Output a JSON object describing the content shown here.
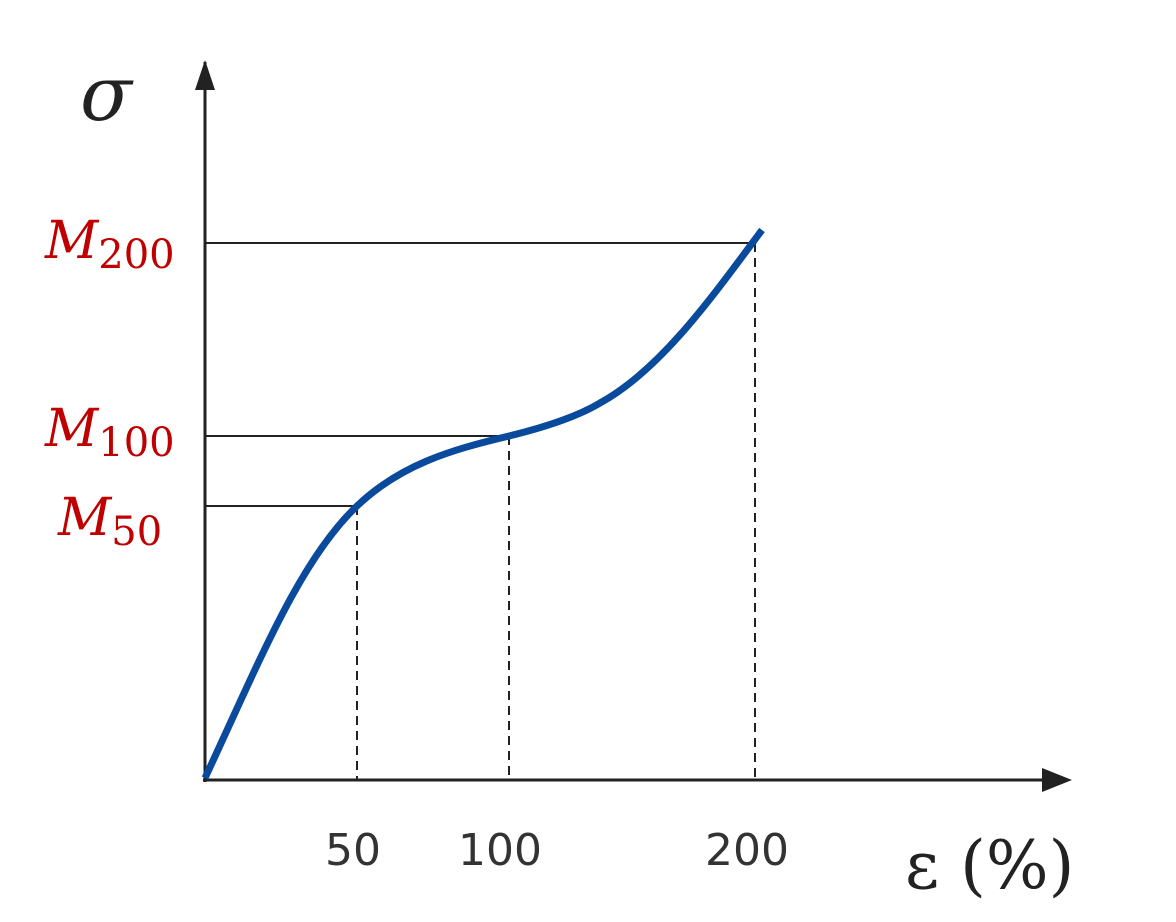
{
  "axes": {
    "y_label": "σ",
    "x_label": "ε (%)"
  },
  "x_markers": [
    "50",
    "100",
    "200"
  ],
  "y_markers": [
    {
      "symbol": "M",
      "subscript": "200"
    },
    {
      "symbol": "M",
      "subscript": "100"
    },
    {
      "symbol": "M",
      "subscript": "50"
    }
  ]
}
